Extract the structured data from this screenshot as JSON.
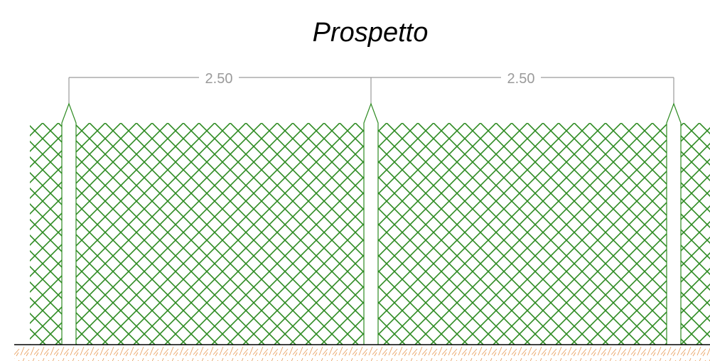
{
  "drawing": {
    "title": "Prospetto",
    "dimensions": [
      {
        "label": "2.50"
      },
      {
        "label": "2.50"
      }
    ]
  },
  "colors": {
    "mesh": "#2e8b22",
    "post_outline": "#2e8b22",
    "dimension_line": "#9a9a9a",
    "ground_line": "#000000",
    "ground_hatch": "#e8a060"
  }
}
